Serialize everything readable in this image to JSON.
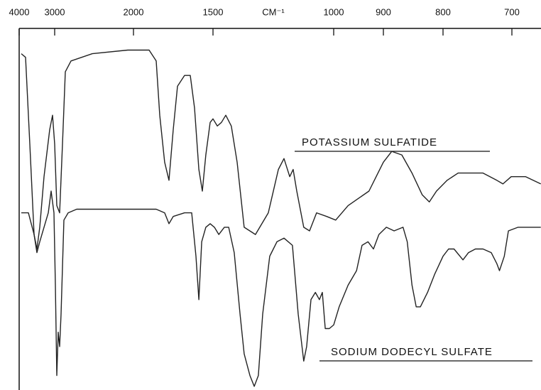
{
  "chart_data": {
    "type": "line",
    "xlabel": "CM⁻¹",
    "xlim": [
      4000,
      658
    ],
    "ylim": [
      0,
      100
    ],
    "xticks": [
      4000,
      3000,
      2000,
      1500,
      1000,
      900,
      800,
      700
    ],
    "color": "#222222",
    "series": [
      {
        "name": "POTASSIUM SULFATIDE",
        "x": [
          3940,
          3820,
          3700,
          3580,
          3500,
          3420,
          3300,
          3140,
          3060,
          3000,
          2973,
          2937,
          2901,
          2865,
          2793,
          2523,
          2072,
          1902,
          1857,
          1835,
          1804,
          1777,
          1750,
          1723,
          1679,
          1643,
          1616,
          1589,
          1567,
          1545,
          1518,
          1500,
          1482,
          1465,
          1447,
          1424,
          1400,
          1371,
          1324,
          1271,
          1229,
          1206,
          1182,
          1168,
          1153,
          1124,
          1100,
          1071,
          1029,
          996,
          971,
          950,
          929,
          900,
          886,
          869,
          852,
          835,
          823,
          811,
          794,
          778,
          763,
          742,
          722,
          713,
          701,
          680,
          658
        ],
        "values": [
          93,
          92,
          68,
          43,
          39,
          45,
          59,
          72,
          76,
          68,
          51,
          49,
          68,
          88,
          91,
          93,
          94,
          94,
          91,
          76,
          63,
          58,
          72,
          84,
          87,
          87,
          78,
          61,
          55,
          65,
          74,
          75,
          73,
          74,
          76,
          73,
          63,
          45,
          43,
          49,
          61,
          64,
          59,
          61,
          55,
          45,
          44,
          49,
          48,
          47,
          51,
          53,
          55,
          63,
          66,
          65,
          60,
          54,
          52,
          55,
          58,
          60,
          60,
          60,
          58,
          57,
          59,
          59,
          57
        ]
      },
      {
        "name": "SODIUM DODECYL SULFATE",
        "x": [
          3940,
          3740,
          3580,
          3500,
          3420,
          3300,
          3180,
          3100,
          3020,
          2991,
          2973,
          2955,
          2937,
          2919,
          2883,
          2829,
          2721,
          2523,
          2072,
          1857,
          1804,
          1777,
          1750,
          1679,
          1634,
          1607,
          1589,
          1571,
          1545,
          1518,
          1494,
          1476,
          1453,
          1435,
          1412,
          1388,
          1371,
          1347,
          1329,
          1312,
          1294,
          1265,
          1235,
          1206,
          1171,
          1147,
          1124,
          1112,
          1094,
          1076,
          1059,
          1047,
          1035,
          1018,
          1000,
          989,
          971,
          954,
          943,
          931,
          920,
          909,
          895,
          882,
          867,
          860,
          852,
          845,
          838,
          826,
          814,
          800,
          792,
          784,
          771,
          763,
          753,
          742,
          730,
          722,
          718,
          711,
          705,
          691,
          658
        ],
        "values": [
          49,
          49,
          43,
          38,
          41,
          45,
          49,
          55,
          49,
          29,
          4,
          16,
          12,
          21,
          47,
          49,
          50,
          50,
          50,
          50,
          49,
          46,
          48,
          49,
          49,
          37,
          25,
          41,
          45,
          46,
          45,
          43,
          45,
          45,
          38,
          21,
          10,
          4,
          1,
          4,
          21,
          37,
          41,
          42,
          40,
          21,
          8,
          12,
          25,
          27,
          25,
          27,
          17,
          17,
          18,
          23,
          29,
          33,
          40,
          41,
          39,
          43,
          45,
          44,
          45,
          41,
          29,
          23,
          23,
          27,
          32,
          37,
          39,
          39,
          36,
          38,
          39,
          39,
          38,
          35,
          33,
          37,
          44,
          45,
          45
        ]
      }
    ]
  }
}
